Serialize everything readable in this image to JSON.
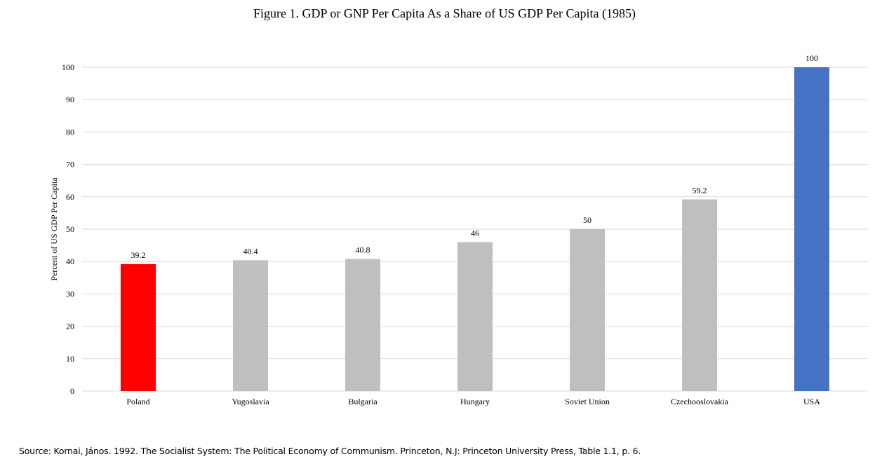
{
  "chart_data": {
    "type": "bar",
    "title": "Figure 1. GDP or GNP Per Capita As a Share of US GDP Per Capita (1985)",
    "xlabel": "",
    "ylabel": "Percent of US GDP Per Capita",
    "categories": [
      "Poland",
      "Yugoslavia",
      "Bulgaria",
      "Hungary",
      "Soviet Union",
      "Czechooslovakia",
      "USA"
    ],
    "values": [
      39.2,
      40.4,
      40.8,
      46,
      50,
      59.2,
      100
    ],
    "data_labels": [
      "39.2",
      "40.4",
      "40.8",
      "46",
      "50",
      "59.2",
      "100"
    ],
    "bar_colors": [
      "#ff0000",
      "#bfbfbf",
      "#bfbfbf",
      "#bfbfbf",
      "#bfbfbf",
      "#bfbfbf",
      "#4472c4"
    ],
    "ylim": [
      0,
      100
    ],
    "yticks": [
      0,
      10,
      20,
      30,
      40,
      50,
      60,
      70,
      80,
      90,
      100
    ],
    "grid": true,
    "gridline_color": "#d9d9d9",
    "legend": "none"
  },
  "source": "Source: Kornai, János. 1992. The Socialist System: The Political Economy of Communism. Princeton, N.J: Princeton University Press, Table 1.1, p. 6."
}
